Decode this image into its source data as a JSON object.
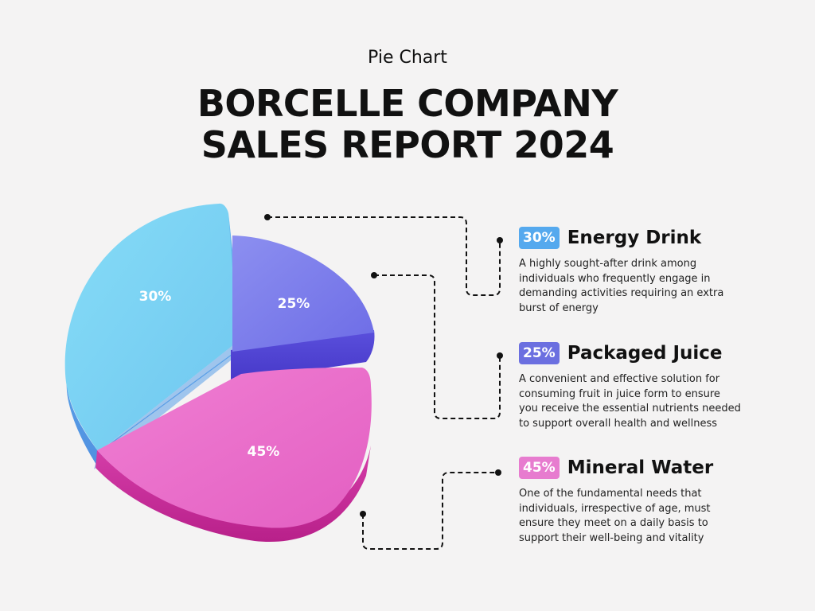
{
  "header": {
    "subtitle": "Pie Chart",
    "title_line1": "BORCELLE COMPANY",
    "title_line2": "SALES REPORT 2024"
  },
  "colors": {
    "background": "#f4f3f3",
    "energy_drink": "#7fd6f5",
    "packaged_juice": "#7b78e8",
    "mineral_water": "#ea6fc8",
    "connector": "#111111"
  },
  "legend": [
    {
      "badge": "30%",
      "name": "Energy Drink",
      "description": "A highly sought-after drink among individuals who frequently engage in demanding activities requiring an extra burst of energy",
      "badge_color": "#55a9ee"
    },
    {
      "badge": "25%",
      "name": "Packaged Juice",
      "description": "A convenient and effective solution for consuming fruit in juice form to ensure you receive the essential nutrients needed to support overall health and wellness",
      "badge_color": "#6b6fe0"
    },
    {
      "badge": "45%",
      "name": "Mineral Water",
      "description": "One of the fundamental needs that individuals, irrespective of age, must ensure they meet on a daily basis to support their well-being and vitality",
      "badge_color": "#e77ccf"
    }
  ],
  "chart_data": {
    "type": "pie",
    "categories": [
      "Energy Drink",
      "Packaged Juice",
      "Mineral Water"
    ],
    "values": [
      30,
      25,
      45
    ],
    "labels": [
      "30%",
      "25%",
      "45%"
    ],
    "title": "BORCELLE COMPANY SALES REPORT 2024"
  }
}
